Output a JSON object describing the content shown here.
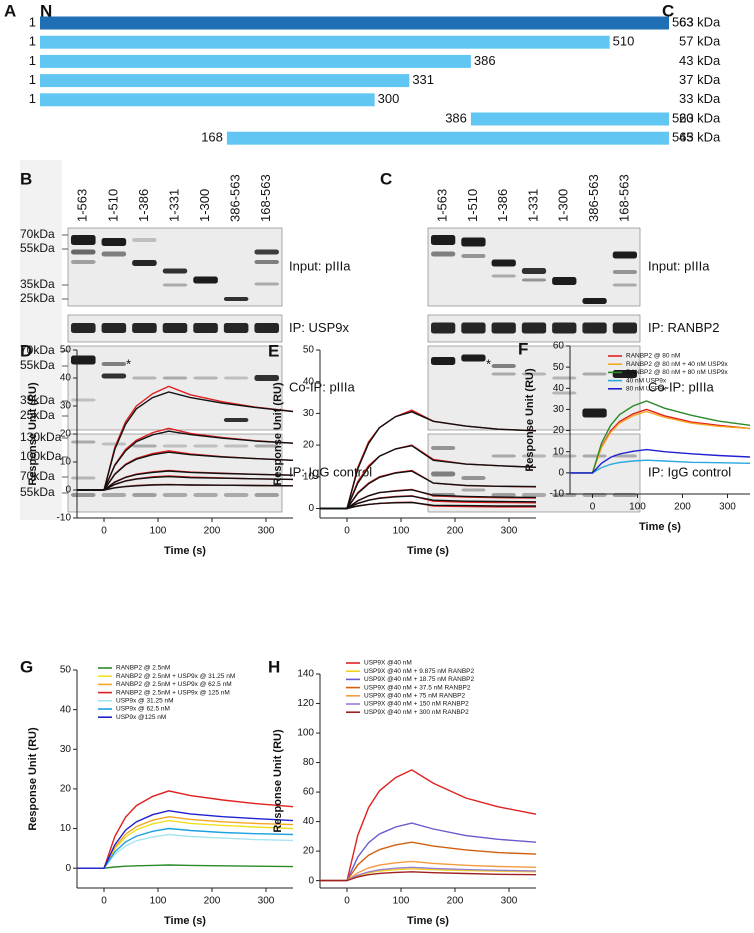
{
  "panel_a": {
    "label": "A",
    "n_label": "N",
    "c_label": "C",
    "constructs": [
      {
        "start": 1,
        "end": 563,
        "size": "63 kDa"
      },
      {
        "start": 1,
        "end": 510,
        "size": "57 kDa"
      },
      {
        "start": 1,
        "end": 386,
        "size": "43 kDa"
      },
      {
        "start": 1,
        "end": 331,
        "size": "37 kDa"
      },
      {
        "start": 1,
        "end": 300,
        "size": "33 kDa"
      },
      {
        "start": 386,
        "end": 563,
        "size": "20 kDa"
      },
      {
        "start": 168,
        "end": 563,
        "size": "45 kDa"
      }
    ]
  },
  "panel_b": {
    "label": "B",
    "lanes": [
      "1-563",
      "1-510",
      "1-386",
      "1-331",
      "1-300",
      "386-563",
      "168-563"
    ],
    "markers": {
      "input": [
        "70kDa",
        "55kDa",
        "35kDa",
        "25kDa"
      ],
      "coip": [
        "70kDa",
        "55kDa",
        "35kDa",
        "25kDa"
      ],
      "igg": [
        "130kDa",
        "100kDa",
        "70kDa",
        "55kDa"
      ]
    },
    "blots": [
      "Input: pIIIa",
      "IP: USP9x",
      "Co-IP: pIIIa",
      "IP: IgG control"
    ],
    "asterisk": "*"
  },
  "panel_c": {
    "label": "C",
    "lanes": [
      "1-563",
      "1-510",
      "1-386",
      "1-331",
      "1-300",
      "386-563",
      "168-563"
    ],
    "blots": [
      "Input: pIIIa",
      "IP: RANBP2",
      "Co-IP: pIIIa",
      "IP: IgG control"
    ],
    "asterisk": "*"
  },
  "chart_data": [
    {
      "type": "line",
      "panel": "D",
      "xlabel": "Time (s)",
      "ylabel": "Response Unit (RU)",
      "x": [
        -50,
        0,
        20,
        40,
        60,
        90,
        120,
        160,
        220,
        280,
        350
      ],
      "xlim": [
        -50,
        350
      ],
      "xticks": [
        0,
        100,
        200,
        300
      ],
      "ylim": [
        -10,
        50
      ],
      "yticks": [
        -10,
        0,
        10,
        20,
        30,
        40,
        50
      ],
      "series": [
        {
          "color": "#e02020",
          "values": [
            0,
            0,
            15.2,
            24.4,
            30,
            34.4,
            37,
            34,
            31.5,
            29.6,
            28.1
          ]
        },
        {
          "color": "#e02020",
          "values": [
            0,
            0,
            9,
            14.5,
            17.8,
            20.5,
            22,
            20.2,
            18.7,
            17.6,
            16.7
          ]
        },
        {
          "color": "#e02020",
          "values": [
            0,
            0,
            5.7,
            9.2,
            11.3,
            13,
            14,
            12.9,
            11.9,
            11.2,
            10.6
          ]
        },
        {
          "color": "#e02020",
          "values": [
            0,
            0,
            2.9,
            4.6,
            5.7,
            6.5,
            7,
            6.4,
            6,
            5.6,
            5.3
          ]
        },
        {
          "color": "#e02020",
          "values": [
            0,
            0,
            2,
            3.3,
            4,
            4.7,
            5,
            4.6,
            4.3,
            4,
            3.8
          ]
        },
        {
          "color": "#e02020",
          "values": [
            0,
            0,
            0.8,
            1.3,
            1.6,
            1.9,
            2,
            1.8,
            1.7,
            1.6,
            1.5
          ]
        },
        {
          "color": "#111111",
          "values": [
            0,
            0,
            14.5,
            23.5,
            29,
            33,
            35,
            33,
            31,
            29.5,
            28
          ]
        },
        {
          "color": "#111111",
          "values": [
            0,
            0,
            8.8,
            14,
            17.3,
            19.7,
            21,
            19.8,
            18.5,
            17.5,
            16.7
          ]
        },
        {
          "color": "#111111",
          "values": [
            0,
            0,
            5.6,
            9,
            11,
            12.6,
            13.5,
            12.6,
            11.8,
            11.2,
            10.6
          ]
        },
        {
          "color": "#111111",
          "values": [
            0,
            0,
            2.8,
            4.5,
            5.5,
            6.3,
            6.8,
            6.3,
            5.9,
            5.6,
            5.3
          ]
        },
        {
          "color": "#111111",
          "values": [
            0,
            0,
            2,
            3.2,
            3.9,
            4.5,
            4.8,
            4.4,
            4.2,
            4,
            3.8
          ]
        },
        {
          "color": "#111111",
          "values": [
            0,
            0,
            0.8,
            1.2,
            1.5,
            1.8,
            1.9,
            1.8,
            1.7,
            1.6,
            1.5
          ]
        }
      ]
    },
    {
      "type": "line",
      "panel": "E",
      "xlabel": "Time (s)",
      "ylabel": "Response Unit (RU)",
      "x": [
        -50,
        0,
        20,
        40,
        60,
        90,
        120,
        160,
        220,
        280,
        350
      ],
      "xlim": [
        -50,
        350
      ],
      "xticks": [
        0,
        100,
        200,
        300
      ],
      "ylim": [
        -3,
        50
      ],
      "yticks": [
        0,
        10,
        20,
        30,
        40,
        50
      ],
      "series": [
        {
          "color": "#e02020",
          "values": [
            0,
            0,
            13,
            21,
            25.5,
            29,
            31,
            27.5,
            26,
            25,
            24.5
          ]
        },
        {
          "color": "#e02020",
          "values": [
            0,
            0,
            8.5,
            13.5,
            16.5,
            18.8,
            20,
            15.5,
            14,
            13.5,
            13
          ]
        },
        {
          "color": "#e02020",
          "values": [
            0,
            0,
            5,
            8,
            10,
            11.3,
            12,
            8,
            7.2,
            7,
            6.8
          ]
        },
        {
          "color": "#e02020",
          "values": [
            0,
            0,
            2.5,
            4,
            5,
            5.6,
            6,
            4,
            3.6,
            3.4,
            3.3
          ]
        },
        {
          "color": "#e02020",
          "values": [
            0,
            0,
            1.6,
            2.6,
            3.3,
            3.8,
            4,
            2.3,
            2,
            1.9,
            1.8
          ]
        },
        {
          "color": "#e02020",
          "values": [
            0,
            0,
            0.8,
            1.3,
            1.6,
            1.9,
            2,
            0.8,
            0.6,
            0.5,
            0.5
          ]
        },
        {
          "color": "#111111",
          "values": [
            0,
            0,
            12.5,
            20.5,
            25.5,
            29,
            30.5,
            27.5,
            26,
            25,
            24.5
          ]
        },
        {
          "color": "#111111",
          "values": [
            0,
            0,
            8,
            13,
            16.5,
            18.8,
            19.8,
            15.2,
            14,
            13.5,
            13
          ]
        },
        {
          "color": "#111111",
          "values": [
            0,
            0,
            4.8,
            7.8,
            9.8,
            11.2,
            11.8,
            8,
            7.3,
            7,
            6.9
          ]
        },
        {
          "color": "#111111",
          "values": [
            0,
            0,
            2.4,
            4,
            5,
            5.5,
            5.9,
            4.2,
            3.8,
            3.6,
            3.5
          ]
        },
        {
          "color": "#111111",
          "values": [
            0,
            0,
            1.6,
            2.6,
            3.2,
            3.7,
            3.9,
            2.6,
            2.3,
            2.2,
            2.1
          ]
        },
        {
          "color": "#111111",
          "values": [
            0,
            0,
            0.8,
            1.3,
            1.6,
            1.8,
            1.9,
            1,
            0.9,
            0.8,
            0.8
          ]
        }
      ]
    },
    {
      "type": "line",
      "panel": "F",
      "xlabel": "Time (s)",
      "ylabel": "Response Unit (RU)",
      "x": [
        -50,
        0,
        20,
        40,
        60,
        90,
        120,
        160,
        220,
        280,
        350
      ],
      "xlim": [
        -50,
        350
      ],
      "xticks": [
        0,
        100,
        200,
        300
      ],
      "ylim": [
        -10,
        60
      ],
      "yticks": [
        -10,
        0,
        10,
        20,
        30,
        40,
        50,
        60
      ],
      "series": [
        {
          "name": "RANBP2 @ 80 nM",
          "color": "#e02020",
          "values": [
            0,
            0,
            12.3,
            19.8,
            24.3,
            27.9,
            30,
            27,
            24,
            22.5,
            21
          ]
        },
        {
          "name": "RANBP2 @ 80 nM + 40 nM USP9x",
          "color": "#f5a623",
          "values": [
            0,
            0,
            11.9,
            19.1,
            23.5,
            27,
            29,
            26.3,
            23.5,
            22,
            21
          ]
        },
        {
          "name": "RANBP2 @ 80 nM + 80 nM USP9x",
          "color": "#2a8a2a",
          "values": [
            0,
            0,
            14,
            22.4,
            27.5,
            31.6,
            34,
            30.6,
            27.2,
            24.5,
            22.5
          ]
        },
        {
          "name": "40 nM USP9x",
          "color": "#29a9e0",
          "values": [
            0,
            0,
            2.5,
            4,
            4.9,
            5.6,
            6,
            5.6,
            5,
            4.8,
            4.5
          ]
        },
        {
          "name": "80 nM USP9x",
          "color": "#2020d0",
          "values": [
            0,
            0,
            4.5,
            7.3,
            8.9,
            10.2,
            11,
            10,
            9,
            8.2,
            7.5
          ]
        }
      ]
    },
    {
      "type": "line",
      "panel": "G",
      "xlabel": "Time (s)",
      "ylabel": "Response Unit (RU)",
      "x": [
        -50,
        0,
        20,
        40,
        60,
        90,
        120,
        160,
        220,
        280,
        350
      ],
      "xlim": [
        -50,
        350
      ],
      "xticks": [
        0,
        100,
        200,
        300
      ],
      "ylim": [
        -5,
        50
      ],
      "yticks": [
        0,
        10,
        20,
        30,
        40,
        50
      ],
      "series": [
        {
          "name": "RANBP2 @ 2.5nM",
          "color": "#2a8a2a",
          "values": [
            0,
            0,
            0.3,
            0.5,
            0.6,
            0.7,
            0.8,
            0.7,
            0.6,
            0.5,
            0.4
          ]
        },
        {
          "name": "RANBP2 @ 2.5nM + USP9x @ 31.25 nM",
          "color": "#f0e020",
          "values": [
            0,
            0,
            4.9,
            7.9,
            9.7,
            11.2,
            12,
            11.3,
            10.8,
            10.4,
            10
          ]
        },
        {
          "name": "RANBP2 @ 2.5nM + USP9x @ 62.5 nM",
          "color": "#f5a623",
          "values": [
            0,
            0,
            5.3,
            8.6,
            10.5,
            12.1,
            13,
            12.3,
            11.7,
            11.3,
            11
          ]
        },
        {
          "name": "RANBP2 @ 2.5nM + USP9x @ 125 nM",
          "color": "#e02020",
          "values": [
            0,
            0,
            8,
            12.9,
            15.8,
            18.1,
            19.5,
            18.3,
            17.2,
            16.3,
            15.5
          ]
        },
        {
          "name": "USP9x @ 31.25 nM",
          "color": "#a8e4f0",
          "values": [
            0,
            0,
            3.5,
            5.6,
            6.9,
            7.9,
            8.5,
            8,
            7.6,
            7.2,
            7
          ]
        },
        {
          "name": "USP9x @ 62.5 nM",
          "color": "#1ea0e0",
          "values": [
            0,
            0,
            4.1,
            6.6,
            8.1,
            9.3,
            10,
            9.5,
            9,
            8.7,
            8.5
          ]
        },
        {
          "name": "USP9x @125 nM",
          "color": "#2020d0",
          "values": [
            0,
            0,
            5.9,
            9.6,
            11.7,
            13.5,
            14.5,
            13.7,
            13,
            12.5,
            12
          ]
        }
      ]
    },
    {
      "type": "line",
      "panel": "H",
      "xlabel": "Time (s)",
      "ylabel": "Response Unit (RU)",
      "x": [
        -50,
        0,
        20,
        40,
        60,
        90,
        120,
        160,
        220,
        280,
        350
      ],
      "xlim": [
        -50,
        350
      ],
      "xticks": [
        0,
        100,
        200,
        300
      ],
      "ylim": [
        -5,
        140
      ],
      "yticks": [
        0,
        20,
        40,
        60,
        80,
        100,
        120,
        140
      ],
      "series": [
        {
          "name": "USP9X @40 nM",
          "color": "#e02020",
          "values": [
            0,
            0,
            30.8,
            49.5,
            60.8,
            69.8,
            75,
            66,
            56,
            50,
            45
          ]
        },
        {
          "name": "USP9X @40 nM + 9.875 nM RANBP2",
          "color": "#f0d020",
          "values": [
            0,
            0,
            3.3,
            5.3,
            6.5,
            7.4,
            8,
            7.4,
            6.8,
            6.4,
            6
          ]
        },
        {
          "name": "USP9X @40 nM + 18.75 nM RANBP2",
          "color": "#6a5acd",
          "values": [
            0,
            0,
            16,
            25.7,
            31.6,
            36.3,
            39,
            35,
            30.5,
            28,
            26
          ]
        },
        {
          "name": "USP9X @40 nM + 37.5 nM RANBP2",
          "color": "#d06010",
          "values": [
            0,
            0,
            10.7,
            17.2,
            21,
            24.2,
            26,
            23.4,
            20.8,
            19,
            18
          ]
        },
        {
          "name": "USP9X @40 nM + 75 nM RANBP2",
          "color": "#f59a40",
          "values": [
            0,
            0,
            5.3,
            8.6,
            10.5,
            12.1,
            13,
            11.7,
            10.4,
            9.6,
            9
          ]
        },
        {
          "name": "USP9X @40 nM + 150 nM RANBP2",
          "color": "#9a7fd0",
          "values": [
            0,
            0,
            3.7,
            5.9,
            7.3,
            8.4,
            9,
            8.3,
            7.5,
            7,
            6.5
          ]
        },
        {
          "name": "USP9X @40 nM + 300 nM RANBP2",
          "color": "#a02020",
          "values": [
            0,
            0,
            2.5,
            4,
            4.9,
            5.6,
            6,
            5.4,
            4.8,
            4.3,
            4
          ]
        }
      ]
    }
  ]
}
